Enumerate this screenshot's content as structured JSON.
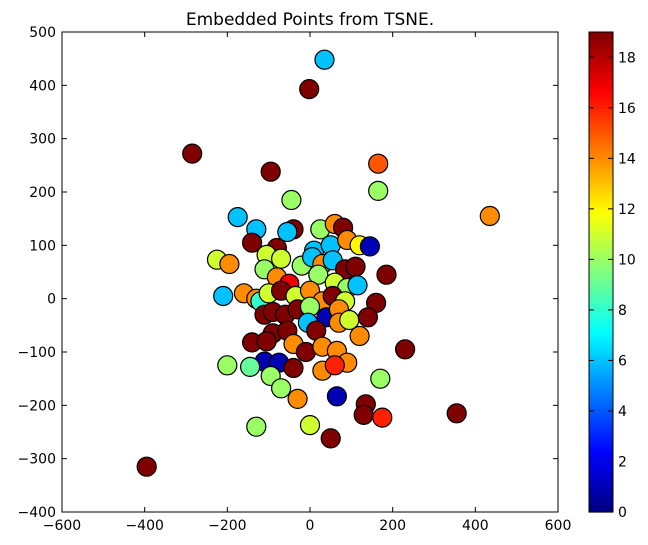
{
  "chart_data": {
    "type": "scatter",
    "title": "Embedded Points from TSNE.",
    "xlabel": "",
    "ylabel": "",
    "xlim": [
      -600,
      600
    ],
    "ylim": [
      -400,
      500
    ],
    "xticks": [
      -600,
      -400,
      -200,
      0,
      200,
      400,
      600
    ],
    "yticks": [
      -400,
      -300,
      -200,
      -100,
      0,
      100,
      200,
      300,
      400,
      500
    ],
    "grid": false,
    "colormap": "jet",
    "colorbar": {
      "range": [
        0,
        19
      ],
      "ticks": [
        0,
        2,
        4,
        6,
        8,
        10,
        12,
        14,
        16,
        18
      ]
    },
    "colors": {
      "marker_edge": "#000000",
      "jet_stops": [
        "#00007f",
        "#0000ff",
        "#007fff",
        "#00ffff",
        "#7fff7f",
        "#ffff00",
        "#ff7f00",
        "#ff0000",
        "#7f0000"
      ]
    },
    "points": [
      {
        "x": 35,
        "y": 448,
        "c": 6
      },
      {
        "x": -2,
        "y": 393,
        "c": 19
      },
      {
        "x": -285,
        "y": 272,
        "c": 19
      },
      {
        "x": -95,
        "y": 238,
        "c": 19
      },
      {
        "x": 165,
        "y": 253,
        "c": 15
      },
      {
        "x": 165,
        "y": 202,
        "c": 10
      },
      {
        "x": -45,
        "y": 185,
        "c": 10
      },
      {
        "x": 435,
        "y": 155,
        "c": 14
      },
      {
        "x": -175,
        "y": 153,
        "c": 6
      },
      {
        "x": -130,
        "y": 130,
        "c": 6
      },
      {
        "x": -40,
        "y": 130,
        "c": 19
      },
      {
        "x": -55,
        "y": 125,
        "c": 6
      },
      {
        "x": 25,
        "y": 130,
        "c": 10
      },
      {
        "x": 60,
        "y": 140,
        "c": 14
      },
      {
        "x": 80,
        "y": 133,
        "c": 19
      },
      {
        "x": -140,
        "y": 105,
        "c": 19
      },
      {
        "x": -80,
        "y": 95,
        "c": 19
      },
      {
        "x": 10,
        "y": 90,
        "c": 6
      },
      {
        "x": 50,
        "y": 100,
        "c": 6
      },
      {
        "x": 90,
        "y": 110,
        "c": 14
      },
      {
        "x": 120,
        "y": 100,
        "c": 12
      },
      {
        "x": 145,
        "y": 98,
        "c": 1
      },
      {
        "x": -225,
        "y": 73,
        "c": 11
      },
      {
        "x": -195,
        "y": 65,
        "c": 14
      },
      {
        "x": -105,
        "y": 82,
        "c": 11
      },
      {
        "x": -70,
        "y": 75,
        "c": 11
      },
      {
        "x": -20,
        "y": 62,
        "c": 10
      },
      {
        "x": 5,
        "y": 78,
        "c": 6
      },
      {
        "x": 30,
        "y": 65,
        "c": 14
      },
      {
        "x": 55,
        "y": 72,
        "c": 6
      },
      {
        "x": 85,
        "y": 55,
        "c": 19
      },
      {
        "x": 110,
        "y": 60,
        "c": 19
      },
      {
        "x": -110,
        "y": 55,
        "c": 10
      },
      {
        "x": -80,
        "y": 40,
        "c": 14
      },
      {
        "x": -50,
        "y": 28,
        "c": 17
      },
      {
        "x": 20,
        "y": 45,
        "c": 10
      },
      {
        "x": 60,
        "y": 30,
        "c": 11
      },
      {
        "x": 90,
        "y": 20,
        "c": 10
      },
      {
        "x": 185,
        "y": 45,
        "c": 19
      },
      {
        "x": -210,
        "y": 5,
        "c": 6
      },
      {
        "x": -160,
        "y": 10,
        "c": 14
      },
      {
        "x": -130,
        "y": 0,
        "c": 14
      },
      {
        "x": -120,
        "y": -5,
        "c": 8
      },
      {
        "x": -100,
        "y": 10,
        "c": 11
      },
      {
        "x": -70,
        "y": 15,
        "c": 19
      },
      {
        "x": -35,
        "y": 5,
        "c": 11
      },
      {
        "x": 0,
        "y": 15,
        "c": 14
      },
      {
        "x": 30,
        "y": -5,
        "c": 14
      },
      {
        "x": 55,
        "y": 5,
        "c": 19
      },
      {
        "x": 85,
        "y": -5,
        "c": 11
      },
      {
        "x": 115,
        "y": 25,
        "c": 6
      },
      {
        "x": 160,
        "y": -8,
        "c": 19
      },
      {
        "x": -110,
        "y": -30,
        "c": 19
      },
      {
        "x": -90,
        "y": -25,
        "c": 19
      },
      {
        "x": -60,
        "y": -30,
        "c": 19
      },
      {
        "x": -30,
        "y": -20,
        "c": 19
      },
      {
        "x": 0,
        "y": -15,
        "c": 10
      },
      {
        "x": 40,
        "y": -35,
        "c": 1
      },
      {
        "x": 70,
        "y": -20,
        "c": 14
      },
      {
        "x": 70,
        "y": -45,
        "c": 14
      },
      {
        "x": 95,
        "y": -40,
        "c": 11
      },
      {
        "x": 140,
        "y": -35,
        "c": 19
      },
      {
        "x": -5,
        "y": -45,
        "c": 6
      },
      {
        "x": 15,
        "y": -60,
        "c": 19
      },
      {
        "x": -90,
        "y": -65,
        "c": 19
      },
      {
        "x": -55,
        "y": -60,
        "c": 19
      },
      {
        "x": -140,
        "y": -82,
        "c": 19
      },
      {
        "x": -105,
        "y": -80,
        "c": 19
      },
      {
        "x": -40,
        "y": -85,
        "c": 14
      },
      {
        "x": -10,
        "y": -100,
        "c": 19
      },
      {
        "x": 30,
        "y": -90,
        "c": 14
      },
      {
        "x": 65,
        "y": -98,
        "c": 14
      },
      {
        "x": 90,
        "y": -120,
        "c": 14
      },
      {
        "x": 120,
        "y": -70,
        "c": 14
      },
      {
        "x": 230,
        "y": -95,
        "c": 19
      },
      {
        "x": -200,
        "y": -125,
        "c": 10
      },
      {
        "x": -110,
        "y": -118,
        "c": 1
      },
      {
        "x": -75,
        "y": -120,
        "c": 1
      },
      {
        "x": -40,
        "y": -130,
        "c": 19
      },
      {
        "x": 30,
        "y": -135,
        "c": 14
      },
      {
        "x": 60,
        "y": -125,
        "c": 16
      },
      {
        "x": -145,
        "y": -128,
        "c": 9
      },
      {
        "x": -95,
        "y": -145,
        "c": 10
      },
      {
        "x": -70,
        "y": -168,
        "c": 10
      },
      {
        "x": 170,
        "y": -150,
        "c": 10
      },
      {
        "x": -30,
        "y": -188,
        "c": 14
      },
      {
        "x": 65,
        "y": -183,
        "c": 1
      },
      {
        "x": 135,
        "y": -198,
        "c": 19
      },
      {
        "x": 130,
        "y": -218,
        "c": 19
      },
      {
        "x": 175,
        "y": -223,
        "c": 16
      },
      {
        "x": 355,
        "y": -215,
        "c": 19
      },
      {
        "x": -130,
        "y": -240,
        "c": 10
      },
      {
        "x": 0,
        "y": -237,
        "c": 11
      },
      {
        "x": 50,
        "y": -262,
        "c": 19
      },
      {
        "x": -395,
        "y": -315,
        "c": 19
      }
    ]
  }
}
